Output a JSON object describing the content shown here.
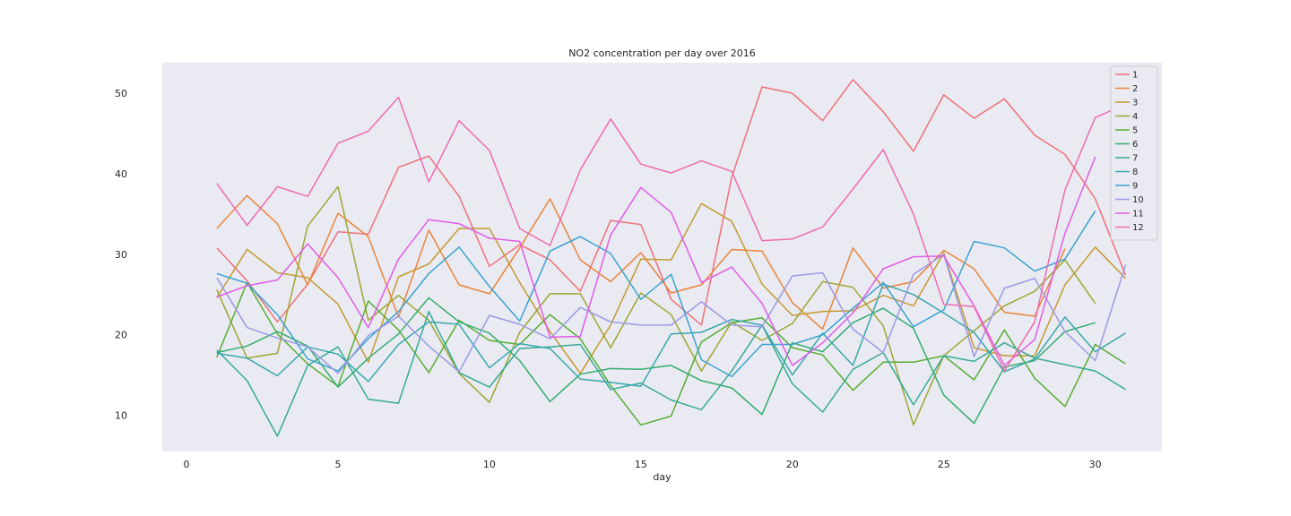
{
  "chart_data": {
    "type": "line",
    "title": "NO2 concentration per day over 2016",
    "xlabel": "day",
    "ylabel": "",
    "xlim": [
      -0.8,
      32.2
    ],
    "ylim": [
      5.5,
      53.8
    ],
    "xticks": [
      0,
      5,
      10,
      15,
      20,
      25,
      30
    ],
    "yticks": [
      10,
      20,
      30,
      40,
      50
    ],
    "grid": false,
    "background": "#eaeaf2",
    "legend_position": "upper right",
    "x": [
      1,
      2,
      3,
      4,
      5,
      6,
      7,
      8,
      9,
      10,
      11,
      12,
      13,
      14,
      15,
      16,
      17,
      18,
      19,
      20,
      21,
      22,
      23,
      24,
      25,
      26,
      27,
      28,
      29,
      30,
      31
    ],
    "series": [
      {
        "name": "1",
        "color": "#f0707a",
        "values": [
          30.8,
          26.7,
          21.6,
          26.3,
          32.8,
          32.5,
          40.8,
          42.2,
          37.2,
          28.5,
          31.2,
          29.3,
          25.4,
          34.2,
          33.7,
          24.4,
          21.2,
          39.6,
          50.8,
          50.0,
          46.6,
          51.7,
          47.7,
          42.8,
          49.8,
          46.9,
          49.3,
          44.8,
          42.4,
          36.9,
          27.4
        ]
      },
      {
        "name": "2",
        "color": "#e9853b",
        "values": [
          33.2,
          37.3,
          33.8,
          26.2,
          35.1,
          32.2,
          22.2,
          33.0,
          26.2,
          25.1,
          30.8,
          36.9,
          29.3,
          26.6,
          30.2,
          25.2,
          26.2,
          30.6,
          30.4,
          24.0,
          20.7,
          30.8,
          25.8,
          26.6,
          30.5,
          28.2,
          22.8,
          22.3,
          30.7,
          null,
          null
        ]
      },
      {
        "name": "3",
        "color": "#c49a31",
        "values": [
          24.6,
          30.6,
          27.7,
          27.1,
          23.8,
          16.6,
          27.2,
          28.8,
          33.2,
          33.2,
          26.5,
          20.4,
          15.2,
          21.2,
          29.4,
          29.3,
          36.3,
          34.1,
          26.3,
          22.4,
          22.9,
          23.0,
          24.9,
          23.6,
          30.2,
          18.4,
          17.4,
          17.4,
          26.2,
          30.9,
          27.0
        ]
      },
      {
        "name": "4",
        "color": "#9ea634",
        "values": [
          25.6,
          17.1,
          17.7,
          33.5,
          38.4,
          21.8,
          24.9,
          21.8,
          15.2,
          11.6,
          20.3,
          25.1,
          25.1,
          18.4,
          25.2,
          22.5,
          15.5,
          21.6,
          19.3,
          21.4,
          26.6,
          25.9,
          21.1,
          8.8,
          17.4,
          20.5,
          23.6,
          25.4,
          29.3,
          23.9,
          null
        ]
      },
      {
        "name": "5",
        "color": "#56ae33",
        "values": [
          17.2,
          26.5,
          20.1,
          16.4,
          13.6,
          24.2,
          20.6,
          15.3,
          21.8,
          19.3,
          18.8,
          22.5,
          19.5,
          13.7,
          8.8,
          9.9,
          19.1,
          21.5,
          22.1,
          18.4,
          17.5,
          13.1,
          16.6,
          16.6,
          17.4,
          14.4,
          20.6,
          14.6,
          11.1,
          18.8,
          16.4
        ]
      },
      {
        "name": "6",
        "color": "#35ad6f",
        "values": [
          17.8,
          18.6,
          20.4,
          18.6,
          13.5,
          17.1,
          20.1,
          24.6,
          21.6,
          20.2,
          16.8,
          11.7,
          15.1,
          15.8,
          15.7,
          16.2,
          14.3,
          13.4,
          10.1,
          19.0,
          17.9,
          21.5,
          23.3,
          20.8,
          12.5,
          9.0,
          16.0,
          16.8,
          20.4,
          21.5,
          null
        ]
      },
      {
        "name": "7",
        "color": "#37ab95",
        "values": [
          18.1,
          14.3,
          7.4,
          16.2,
          18.5,
          12.0,
          11.5,
          22.9,
          15.3,
          13.5,
          18.3,
          18.5,
          18.8,
          13.2,
          14.0,
          11.9,
          10.7,
          15.5,
          21.2,
          13.9,
          10.4,
          15.7,
          17.8,
          11.3,
          17.4,
          16.7,
          19.0,
          17.1,
          16.3,
          15.5,
          13.2
        ]
      },
      {
        "name": "8",
        "color": "#38a8ad",
        "values": [
          17.7,
          17.1,
          14.9,
          18.5,
          17.6,
          14.2,
          18.8,
          21.6,
          21.3,
          15.9,
          18.9,
          18.3,
          14.5,
          14.1,
          13.6,
          20.1,
          20.3,
          21.9,
          21.2,
          15.0,
          20.2,
          16.2,
          26.3,
          25.0,
          22.7,
          20.3,
          15.4,
          17.0,
          22.2,
          17.9,
          20.2
        ]
      },
      {
        "name": "9",
        "color": "#3aa3d0",
        "values": [
          27.6,
          26.4,
          22.5,
          17.0,
          15.5,
          19.5,
          22.9,
          27.6,
          30.9,
          26.0,
          21.7,
          30.4,
          32.2,
          30.1,
          24.4,
          27.5,
          16.9,
          14.8,
          18.8,
          18.8,
          20.0,
          23.3,
          26.5,
          21.0,
          23.1,
          31.6,
          30.8,
          27.9,
          29.4,
          35.4,
          null
        ]
      },
      {
        "name": "10",
        "color": "#9b9ae6",
        "values": [
          27.1,
          20.9,
          19.6,
          18.5,
          15.2,
          19.9,
          22.3,
          18.6,
          15.4,
          22.4,
          21.3,
          19.5,
          23.4,
          21.6,
          21.2,
          21.2,
          24.1,
          21.2,
          21.0,
          27.3,
          27.7,
          20.7,
          17.8,
          27.5,
          30.0,
          17.3,
          25.8,
          27.0,
          20.4,
          16.8,
          28.7
        ]
      },
      {
        "name": "11",
        "color": "#e05de5",
        "values": [
          24.7,
          26.1,
          26.8,
          31.3,
          27.1,
          20.9,
          29.4,
          34.3,
          33.8,
          32.0,
          31.6,
          19.7,
          19.8,
          32.4,
          38.3,
          35.2,
          26.5,
          28.4,
          23.9,
          16.2,
          19.0,
          22.7,
          28.2,
          29.7,
          29.8,
          23.6,
          16.2,
          19.4,
          32.6,
          42.1,
          null
        ]
      },
      {
        "name": "12",
        "color": "#ef6bb0",
        "values": [
          38.8,
          33.6,
          38.4,
          37.2,
          43.8,
          45.3,
          49.5,
          39.0,
          46.6,
          42.9,
          33.2,
          31.1,
          40.5,
          46.8,
          41.2,
          40.1,
          41.6,
          40.3,
          31.7,
          31.9,
          33.4,
          38.1,
          43.0,
          35.0,
          23.8,
          23.5,
          15.5,
          21.6,
          38.0,
          47.0,
          48.6
        ]
      }
    ]
  }
}
